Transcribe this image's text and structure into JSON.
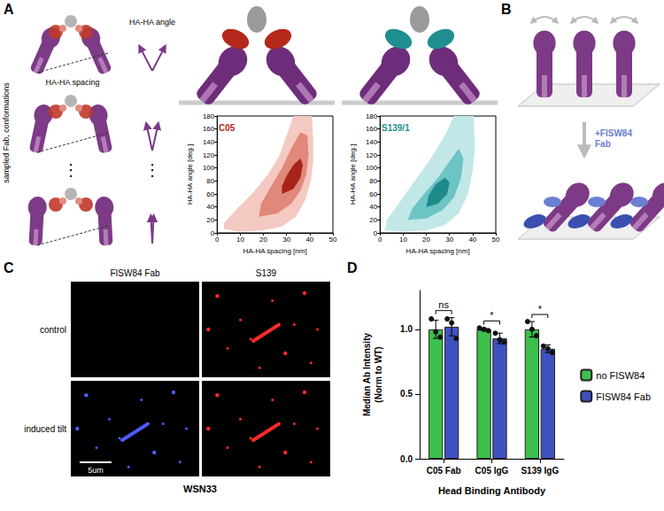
{
  "figure": {
    "letters": [
      "A",
      "B",
      "C",
      "D"
    ],
    "schematic": {
      "side_label": "sampled Fab, conformations",
      "spacing_label": "HA-HA spacing",
      "angle_label": "HA-HA angle",
      "ellipsis": "⋮"
    },
    "tilt_label": "+FISW84 Fab",
    "microscopy": {
      "columns": [
        "FISW84 Fab",
        "S139"
      ],
      "rows": [
        "control",
        "induced tilt"
      ],
      "scale_bar": "5um",
      "strain": "WSN33"
    }
  },
  "chart_data": [
    {
      "type": "density",
      "title": "C05",
      "color": "#b5281c",
      "x_label": "HA-HA spacing [nm]",
      "y_label": "HA-HA angle [deg.]",
      "xlim": [
        0,
        50
      ],
      "xticks": [
        0,
        10,
        20,
        30,
        40,
        50
      ],
      "ylim": [
        0,
        180
      ],
      "yticks": [
        0,
        20,
        40,
        60,
        80,
        100,
        120,
        140,
        160,
        180
      ],
      "grid": false,
      "series": [
        {
          "color": "#f4c9c2",
          "values": [
            [
              3,
              6
            ],
            [
              10,
              2
            ],
            [
              20,
              4
            ],
            [
              28,
              10
            ],
            [
              34,
              25
            ],
            [
              38,
              50
            ],
            [
              40.5,
              80
            ],
            [
              41.5,
              110
            ],
            [
              41.5,
              140
            ],
            [
              41,
              180
            ],
            [
              33,
              180
            ],
            [
              30,
              150
            ],
            [
              27,
              120
            ],
            [
              22,
              90
            ],
            [
              15,
              60
            ],
            [
              8,
              35
            ],
            [
              3,
              15
            ]
          ]
        },
        {
          "color": "#e0897a",
          "values": [
            [
              18,
              25
            ],
            [
              26,
              30
            ],
            [
              32,
              45
            ],
            [
              36,
              65
            ],
            [
              38.5,
              90
            ],
            [
              39.5,
              120
            ],
            [
              39,
              150
            ],
            [
              36,
              155
            ],
            [
              32,
              130
            ],
            [
              28,
              100
            ],
            [
              23,
              70
            ],
            [
              19,
              45
            ]
          ]
        },
        {
          "color": "#a8241a",
          "values": [
            [
              28,
              60
            ],
            [
              33,
              68
            ],
            [
              36,
              85
            ],
            [
              37,
              105
            ],
            [
              36,
              115
            ],
            [
              33,
              105
            ],
            [
              30,
              88
            ],
            [
              28,
              72
            ]
          ]
        }
      ]
    },
    {
      "type": "density",
      "title": "S139/1",
      "color": "#1f8f8f",
      "x_label": "HA-HA spacing [nm]",
      "y_label": "HA-HA angle [deg.]",
      "xlim": [
        0,
        50
      ],
      "xticks": [
        0,
        10,
        20,
        30,
        40,
        50
      ],
      "ylim": [
        0,
        180
      ],
      "yticks": [
        0,
        20,
        40,
        60,
        80,
        100,
        120,
        140,
        160,
        180
      ],
      "grid": false,
      "series": [
        {
          "color": "#c2e7e7",
          "values": [
            [
              2,
              4
            ],
            [
              10,
              2
            ],
            [
              20,
              4
            ],
            [
              28,
              12
            ],
            [
              34,
              30
            ],
            [
              38,
              60
            ],
            [
              40,
              95
            ],
            [
              41,
              130
            ],
            [
              40.5,
              180
            ],
            [
              32,
              180
            ],
            [
              28,
              150
            ],
            [
              22,
              115
            ],
            [
              15,
              80
            ],
            [
              8,
              45
            ],
            [
              3,
              20
            ]
          ]
        },
        {
          "color": "#6cc4c4",
          "values": [
            [
              12,
              20
            ],
            [
              20,
              22
            ],
            [
              27,
              35
            ],
            [
              32,
              55
            ],
            [
              35,
              85
            ],
            [
              36,
              115
            ],
            [
              34,
              130
            ],
            [
              30,
              110
            ],
            [
              25,
              85
            ],
            [
              19,
              60
            ],
            [
              14,
              38
            ]
          ]
        },
        {
          "color": "#1f8a8a",
          "values": [
            [
              20,
              40
            ],
            [
              25,
              45
            ],
            [
              29,
              60
            ],
            [
              30,
              78
            ],
            [
              28,
              85
            ],
            [
              24,
              75
            ],
            [
              21,
              58
            ]
          ]
        }
      ]
    },
    {
      "type": "bar",
      "x_label": "Head Binding Antibody",
      "y_label": "Median Ab Intensity\n(Norm to WT)",
      "categories": [
        "C05 Fab",
        "C05 IgG",
        "S139 IgG"
      ],
      "ylim": [
        0,
        1.3
      ],
      "yticks": [
        {
          "value": 0,
          "label": "0.0"
        },
        0.5,
        {
          "value": 1,
          "label": "1.0"
        }
      ],
      "grid": false,
      "legend": "right",
      "annotations": [
        "ns",
        "*",
        "*"
      ],
      "series": [
        {
          "name": "no FISW84",
          "color": "#3cbf4c",
          "values": [
            1.0,
            1.0,
            1.0
          ],
          "errors": [
            0.07,
            0.01,
            0.06
          ],
          "points": [
            [
              1.08,
              0.98,
              0.94
            ],
            [
              1.01,
              1.0,
              0.99
            ],
            [
              1.06,
              1.0,
              0.95
            ]
          ]
        },
        {
          "name": "FISW84 Fab",
          "color": "#3f51c0",
          "values": [
            1.02,
            0.93,
            0.85
          ],
          "errors": [
            0.07,
            0.04,
            0.03
          ],
          "points": [
            [
              1.08,
              1.05,
              0.93
            ],
            [
              0.97,
              0.92,
              0.9
            ],
            [
              0.87,
              0.85,
              0.82
            ]
          ]
        }
      ]
    }
  ]
}
